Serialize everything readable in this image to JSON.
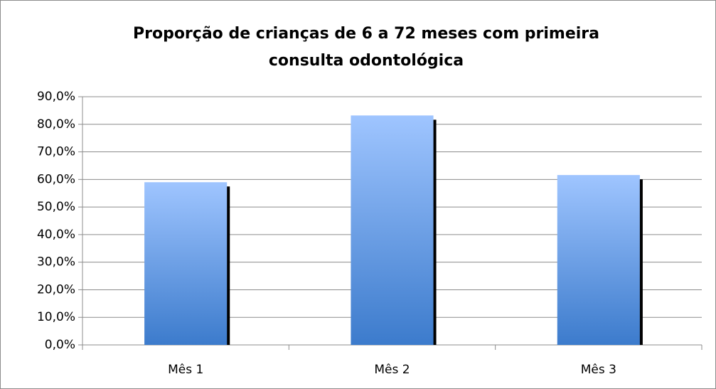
{
  "chart_data": {
    "type": "bar",
    "title": [
      "Proporção de crianças de 6 a 72 meses com primeira",
      "consulta odontológica"
    ],
    "categories": [
      "Mês 1",
      "Mês 2",
      "Mês 3"
    ],
    "values": [
      59.0,
      83.2,
      61.6
    ],
    "color": "#5b95e0",
    "ylim": [
      0,
      90
    ],
    "yticks": [
      {
        "value": 0,
        "label": "0,0%"
      },
      {
        "value": 10,
        "label": "10,0%"
      },
      {
        "value": 20,
        "label": "20,0%"
      },
      {
        "value": 30,
        "label": "30,0%"
      },
      {
        "value": 40,
        "label": "40,0%"
      },
      {
        "value": 50,
        "label": "50,0%"
      },
      {
        "value": 60,
        "label": "60,0%"
      },
      {
        "value": 70,
        "label": "70,0%"
      },
      {
        "value": 80,
        "label": "80,0%"
      },
      {
        "value": 90,
        "label": "90,0%"
      }
    ],
    "grid": true
  }
}
